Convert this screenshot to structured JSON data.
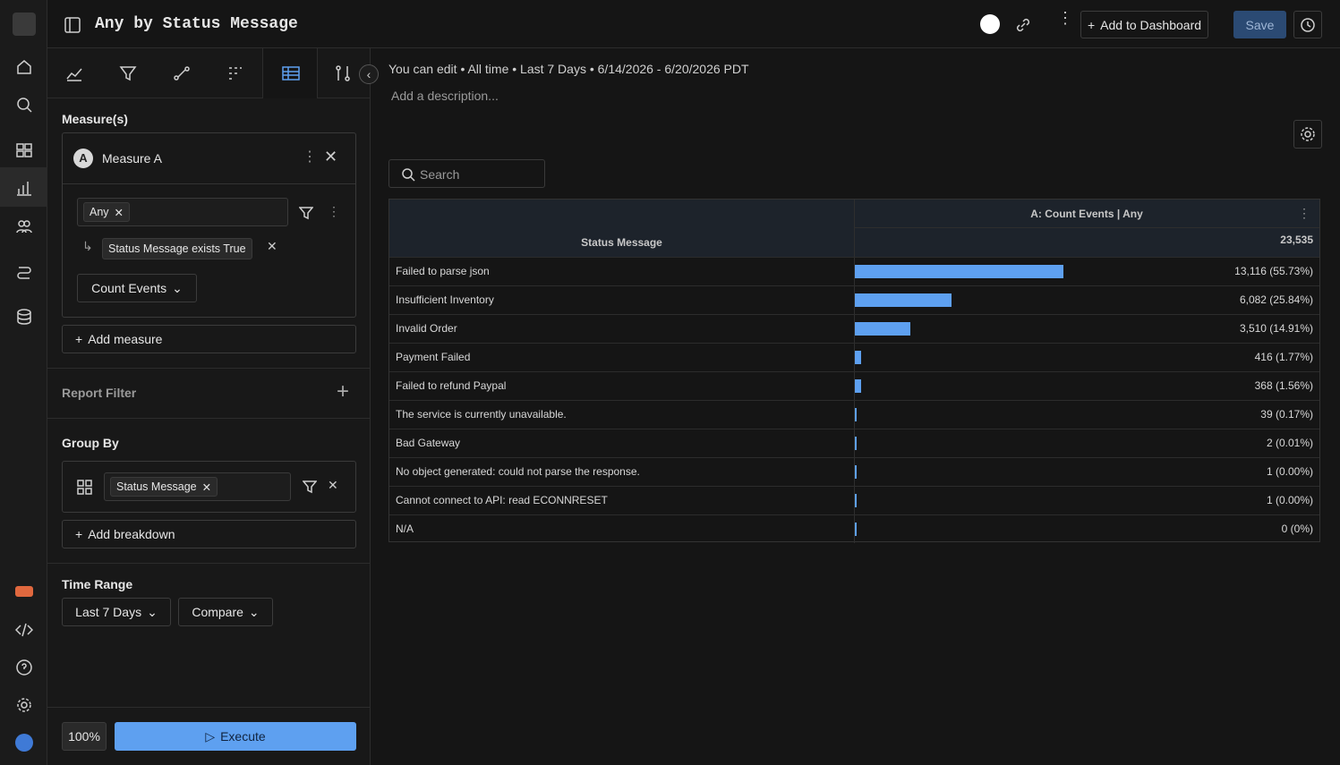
{
  "header": {
    "title": "Any by Status Message",
    "add_to_dashboard": "Add to Dashboard",
    "save": "Save"
  },
  "sidebar": {
    "measures_label": "Measure(s)",
    "measure": {
      "badge": "A",
      "name": "Measure A",
      "event": "Any",
      "filter": "Status Message exists True",
      "aggregation": "Count Events"
    },
    "add_measure": "Add measure",
    "report_filter": "Report Filter",
    "group_by_label": "Group By",
    "group_by": "Status Message",
    "add_breakdown": "Add breakdown",
    "time_range_label": "Time Range",
    "time_range": "Last 7 Days",
    "compare": "Compare",
    "zoom": "100%",
    "execute": "Execute"
  },
  "main": {
    "summary": "You can edit • All time • Last 7 Days • 6/14/2026 - 6/20/2026 PDT",
    "description_placeholder": "Add a description...",
    "search_placeholder": "Search",
    "table": {
      "group_header": "Status Message",
      "measure_header": "A: Count Events | Any",
      "total": "23,535",
      "rows": [
        {
          "label": "Failed to parse json",
          "value": 13116,
          "value_label": "13,116 (55.73%)"
        },
        {
          "label": "Insufficient Inventory",
          "value": 6082,
          "value_label": "6,082 (25.84%)"
        },
        {
          "label": "Invalid Order",
          "value": 3510,
          "value_label": "3,510 (14.91%)"
        },
        {
          "label": "Payment Failed",
          "value": 416,
          "value_label": "416 (1.77%)"
        },
        {
          "label": "Failed to refund Paypal",
          "value": 368,
          "value_label": "368 (1.56%)"
        },
        {
          "label": "The service is currently unavailable.",
          "value": 39,
          "value_label": "39 (0.17%)"
        },
        {
          "label": "Bad Gateway",
          "value": 2,
          "value_label": "2 (0.01%)"
        },
        {
          "label": "No object generated: could not parse the response.",
          "value": 1,
          "value_label": "1 (0.00%)"
        },
        {
          "label": "Cannot connect to API: read ECONNRESET",
          "value": 1,
          "value_label": "1 (0.00%)"
        },
        {
          "label": "N/A",
          "value": 0,
          "value_label": "0 (0%)"
        }
      ]
    }
  }
}
